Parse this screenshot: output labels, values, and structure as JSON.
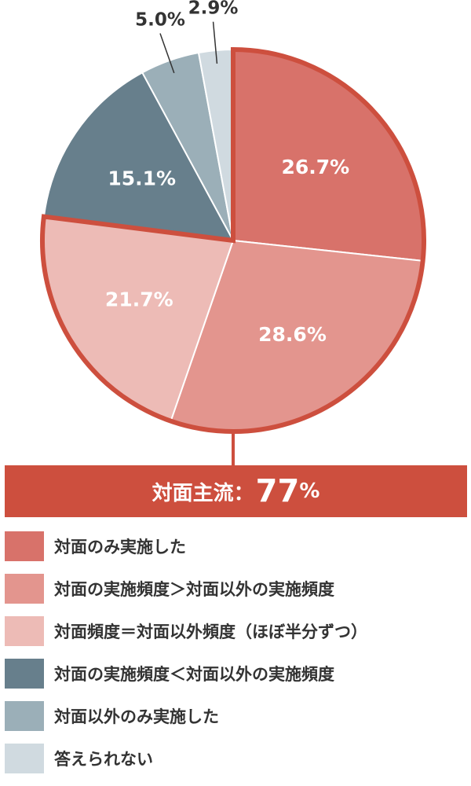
{
  "chart_data": {
    "type": "pie",
    "series": [
      {
        "label": "対面のみ実施した",
        "value": 26.7,
        "display": "26.7%",
        "color": "#d8726a"
      },
      {
        "label": "対面の実施頻度＞対面以外の実施頻度",
        "value": 28.6,
        "display": "28.6%",
        "color": "#e3958e"
      },
      {
        "label": "対面頻度＝対面以外頻度（ほぼ半分ずつ）",
        "value": 21.7,
        "display": "21.7%",
        "color": "#edbbb6"
      },
      {
        "label": "対面の実施頻度＜対面以外の実施頻度",
        "value": 15.1,
        "display": "15.1%",
        "color": "#677f8c"
      },
      {
        "label": "対面以外のみ実施した",
        "value": 5.0,
        "display": "5.0%",
        "color": "#9bafb8"
      },
      {
        "label": "答えられない",
        "value": 2.9,
        "display": "2.9%",
        "color": "#d0dae0"
      }
    ],
    "highlight": {
      "text": "対面主流：",
      "value": "77",
      "unit": "%",
      "color": "#cd4f3e"
    }
  }
}
